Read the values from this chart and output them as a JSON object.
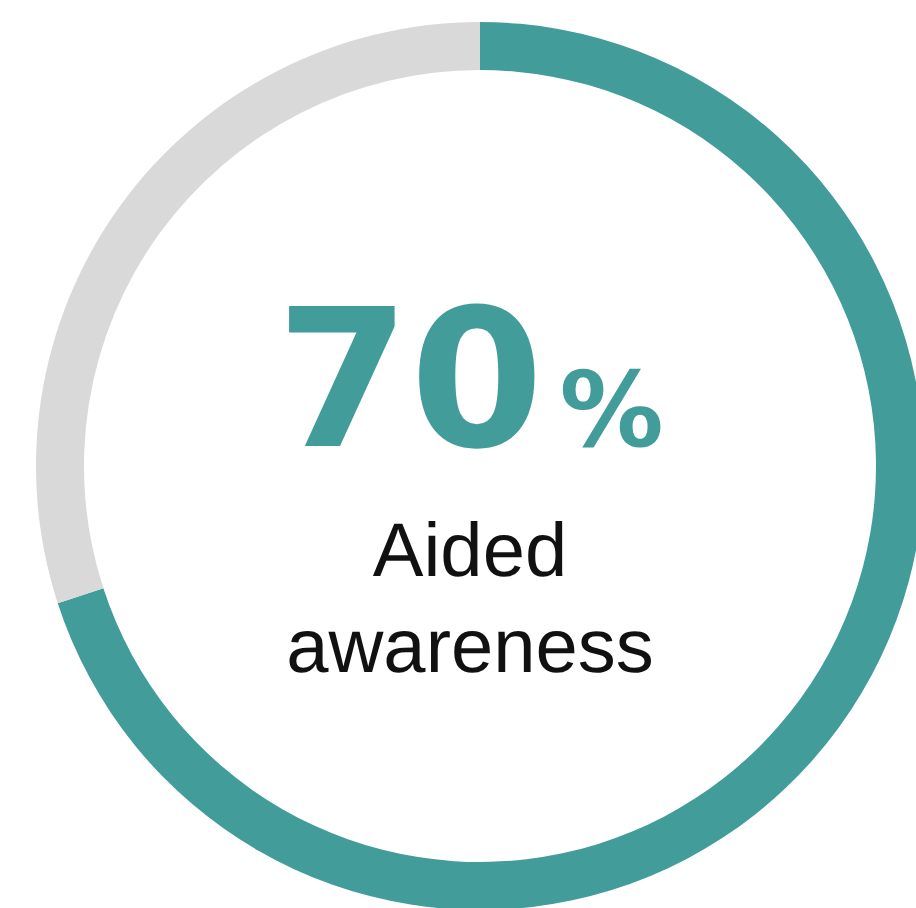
{
  "chart_data": {
    "type": "donut",
    "title": "Aided awareness",
    "categories": [
      null,
      null
    ],
    "values": [
      70,
      30
    ],
    "colors": [
      "#419c9a",
      "#d9d9d9"
    ],
    "value_labels": [
      "70%",
      null
    ],
    "legend": false
  }
}
